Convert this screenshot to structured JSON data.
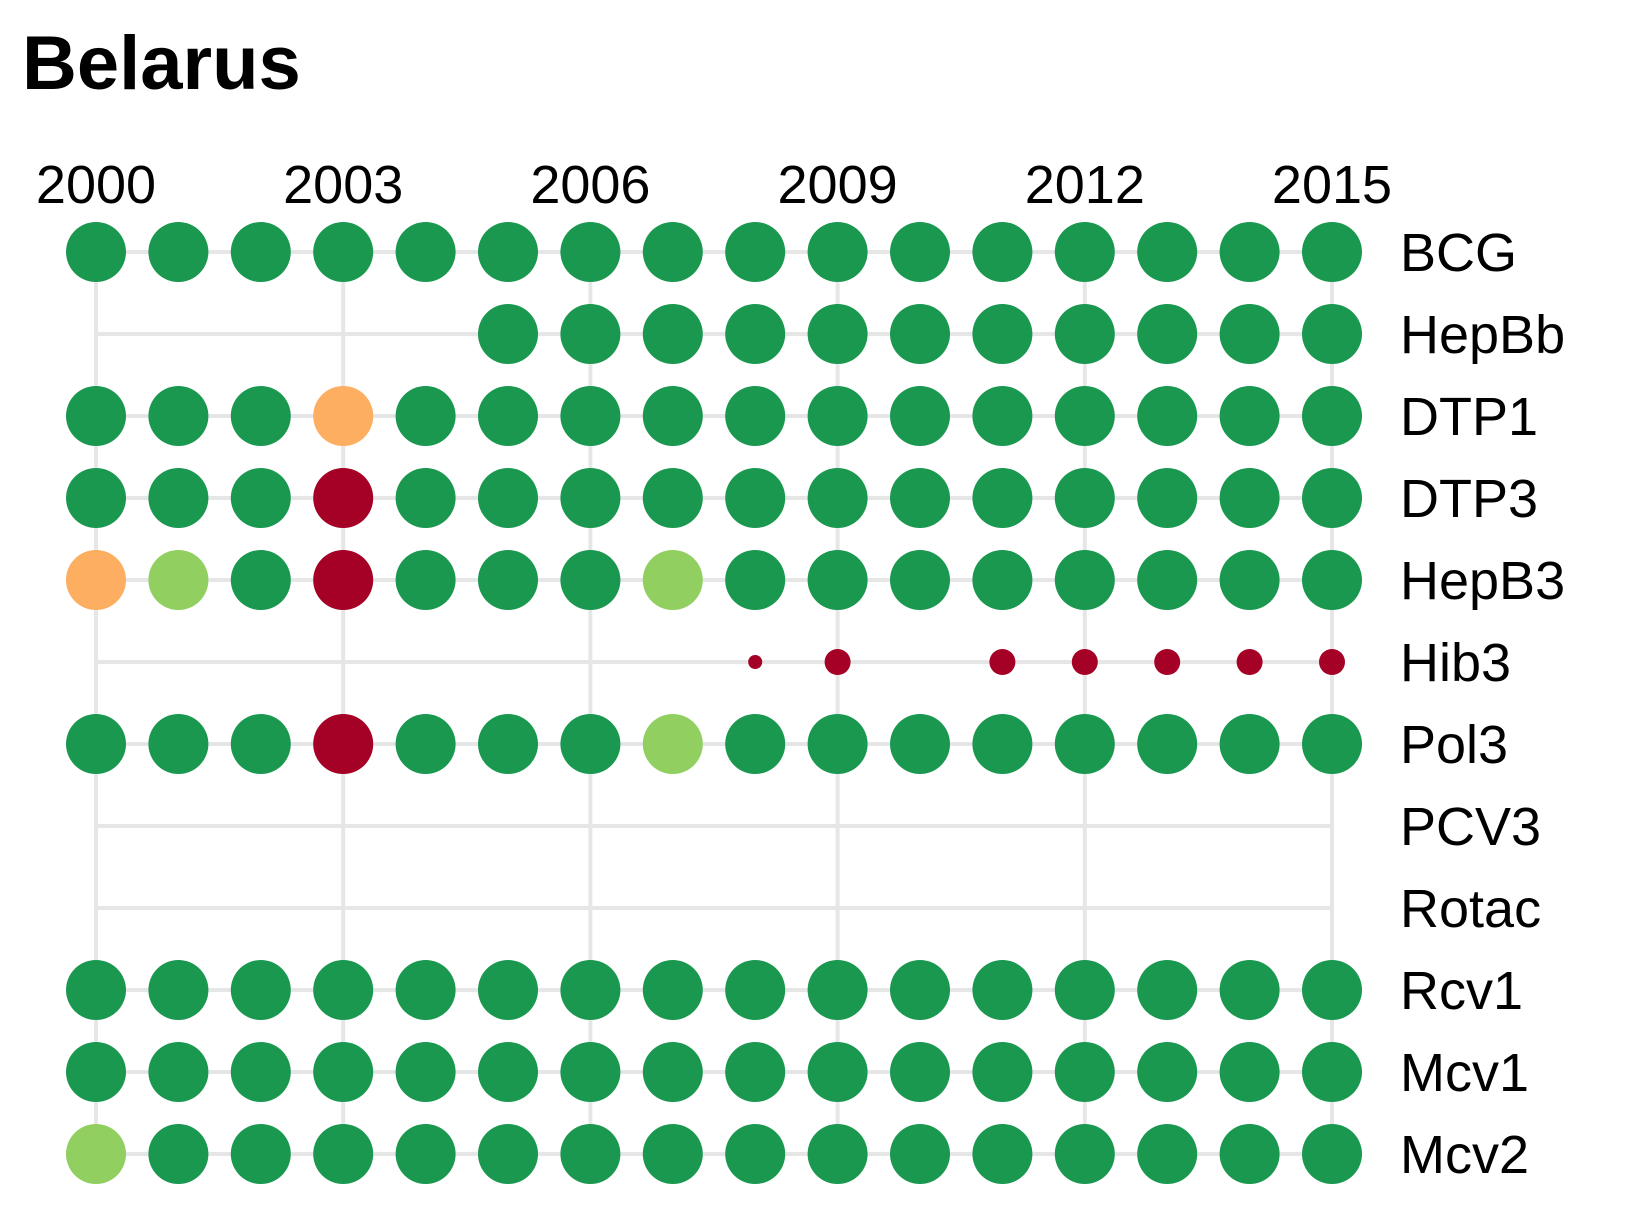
{
  "chart_data": {
    "type": "scatter",
    "title": "Belarus",
    "x_ticks": [
      "2000",
      "2003",
      "2006",
      "2009",
      "2012",
      "2015"
    ],
    "years": [
      2000,
      2001,
      2002,
      2003,
      2004,
      2005,
      2006,
      2007,
      2008,
      2009,
      2010,
      2011,
      2012,
      2013,
      2014,
      2015
    ],
    "grid": true,
    "color_scale": {
      "high": "#1a9850",
      "mid_high": "#91cf60",
      "mid_low": "#fdae61",
      "low": "#a50026"
    },
    "series": [
      {
        "name": "BCG",
        "dots": [
          "high",
          "high",
          "high",
          "high",
          "high",
          "high",
          "high",
          "high",
          "high",
          "high",
          "high",
          "high",
          "high",
          "high",
          "high",
          "high"
        ],
        "size": "full"
      },
      {
        "name": "HepBb",
        "dots": [
          null,
          null,
          null,
          null,
          null,
          "high",
          "high",
          "high",
          "high",
          "high",
          "high",
          "high",
          "high",
          "high",
          "high",
          "high"
        ],
        "size": "full"
      },
      {
        "name": "DTP1",
        "dots": [
          "high",
          "high",
          "high",
          "mid_low",
          "high",
          "high",
          "high",
          "high",
          "high",
          "high",
          "high",
          "high",
          "high",
          "high",
          "high",
          "high"
        ],
        "size": "full"
      },
      {
        "name": "DTP3",
        "dots": [
          "high",
          "high",
          "high",
          "low",
          "high",
          "high",
          "high",
          "high",
          "high",
          "high",
          "high",
          "high",
          "high",
          "high",
          "high",
          "high"
        ],
        "size": "full"
      },
      {
        "name": "HepB3",
        "dots": [
          "mid_low",
          "mid_high",
          "high",
          "low",
          "high",
          "high",
          "high",
          "mid_high",
          "high",
          "high",
          "high",
          "high",
          "high",
          "high",
          "high",
          "high"
        ],
        "size": "full"
      },
      {
        "name": "Hib3",
        "dots": [
          null,
          null,
          null,
          null,
          null,
          null,
          null,
          null,
          "low",
          "low",
          null,
          "low",
          "low",
          "low",
          "low",
          "low"
        ],
        "size": "small"
      },
      {
        "name": "Pol3",
        "dots": [
          "high",
          "high",
          "high",
          "low",
          "high",
          "high",
          "high",
          "mid_high",
          "high",
          "high",
          "high",
          "high",
          "high",
          "high",
          "high",
          "high"
        ],
        "size": "full"
      },
      {
        "name": "PCV3",
        "dots": [
          null,
          null,
          null,
          null,
          null,
          null,
          null,
          null,
          null,
          null,
          null,
          null,
          null,
          null,
          null,
          null
        ],
        "size": "full"
      },
      {
        "name": "Rotac",
        "dots": [
          null,
          null,
          null,
          null,
          null,
          null,
          null,
          null,
          null,
          null,
          null,
          null,
          null,
          null,
          null,
          null
        ],
        "size": "full"
      },
      {
        "name": "Rcv1",
        "dots": [
          "high",
          "high",
          "high",
          "high",
          "high",
          "high",
          "high",
          "high",
          "high",
          "high",
          "high",
          "high",
          "high",
          "high",
          "high",
          "high"
        ],
        "size": "full"
      },
      {
        "name": "Mcv1",
        "dots": [
          "high",
          "high",
          "high",
          "high",
          "high",
          "high",
          "high",
          "high",
          "high",
          "high",
          "high",
          "high",
          "high",
          "high",
          "high",
          "high"
        ],
        "size": "full"
      },
      {
        "name": "Mcv2",
        "dots": [
          "mid_high",
          "high",
          "high",
          "high",
          "high",
          "high",
          "high",
          "high",
          "high",
          "high",
          "high",
          "high",
          "high",
          "high",
          "high",
          "high"
        ],
        "size": "full"
      }
    ]
  }
}
